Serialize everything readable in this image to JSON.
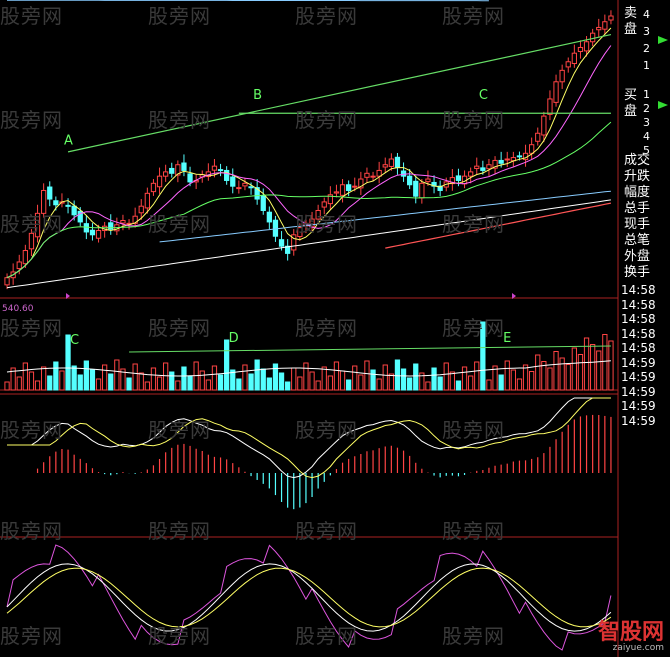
{
  "watermark": "股旁网",
  "brand": {
    "name": "智股网",
    "domain": "zaiyue.com"
  },
  "quote_panel": {
    "sell_label": "卖盘",
    "buy_label": "买盘",
    "sell_levels": [
      "4",
      "3",
      "2",
      "1"
    ],
    "buy_levels": [
      "1",
      "2",
      "3",
      "4",
      "5"
    ],
    "fields": [
      "成交",
      "升跌",
      "幅度",
      "总手",
      "现手",
      "总笔",
      "外盘",
      "换手"
    ],
    "times": [
      "14:58",
      "14:58",
      "14:58",
      "14:58",
      "14:58",
      "14:59",
      "14:59",
      "14:59",
      "14:59",
      "14:59"
    ]
  },
  "volume_scale_label": "540.60",
  "colors": {
    "up": "#ff4444",
    "down": "#55ffff",
    "ma5": "#ffffff",
    "ma10": "#ffff66",
    "ma20": "#ff66ff",
    "ma60": "#66ff66",
    "ma120": "#88ccff",
    "ma250": "#ff5555",
    "trend": "#66dd66",
    "panel_border": "#aa2222"
  },
  "chart_data": [
    {
      "type": "candlestick",
      "panel": "price",
      "annotations": [
        "A",
        "B",
        "C"
      ],
      "x": [
        "1",
        "2",
        "3",
        "4",
        "5",
        "6",
        "7",
        "8",
        "9",
        "10",
        "11",
        "12",
        "13",
        "14",
        "15",
        "16",
        "17",
        "18",
        "19",
        "20",
        "21",
        "22",
        "23",
        "24",
        "25",
        "26",
        "27",
        "28",
        "29",
        "30",
        "31",
        "32",
        "33",
        "34",
        "35",
        "36",
        "37",
        "38",
        "39",
        "40",
        "41",
        "42",
        "43",
        "44",
        "45",
        "46",
        "47",
        "48",
        "49",
        "50",
        "51",
        "52",
        "53",
        "54",
        "55",
        "56",
        "57",
        "58",
        "59",
        "60",
        "61",
        "62",
        "63",
        "64",
        "65",
        "66",
        "67",
        "68",
        "69",
        "70",
        "71",
        "72",
        "73",
        "74",
        "75",
        "76",
        "77",
        "78",
        "79",
        "80",
        "81",
        "82",
        "83",
        "84",
        "85",
        "86",
        "87",
        "88",
        "89",
        "90",
        "91",
        "92",
        "93",
        "94",
        "95",
        "96",
        "97",
        "98",
        "99",
        "100"
      ],
      "close": [
        0.05,
        0.09,
        0.16,
        0.24,
        0.36,
        0.5,
        0.66,
        0.6,
        0.56,
        0.58,
        0.55,
        0.49,
        0.44,
        0.37,
        0.35,
        0.38,
        0.41,
        0.39,
        0.42,
        0.45,
        0.43,
        0.48,
        0.55,
        0.64,
        0.71,
        0.76,
        0.79,
        0.78,
        0.84,
        0.8,
        0.72,
        0.73,
        0.77,
        0.79,
        0.83,
        0.8,
        0.73,
        0.69,
        0.68,
        0.71,
        0.68,
        0.6,
        0.52,
        0.44,
        0.34,
        0.27,
        0.22,
        0.35,
        0.4,
        0.43,
        0.46,
        0.52,
        0.58,
        0.63,
        0.65,
        0.7,
        0.66,
        0.69,
        0.74,
        0.78,
        0.76,
        0.8,
        0.84,
        0.88,
        0.82,
        0.76,
        0.7,
        0.62,
        0.71,
        0.74,
        0.69,
        0.66,
        0.72,
        0.75,
        0.73,
        0.76,
        0.79,
        0.83,
        0.8,
        0.84,
        0.87,
        0.85,
        0.88,
        0.89,
        0.9,
        0.92,
        0.98,
        1.06,
        1.18,
        1.3,
        1.42,
        1.5,
        1.56,
        1.62,
        1.66,
        1.7,
        1.76,
        1.8,
        1.84,
        1.88
      ]
    },
    {
      "type": "bar",
      "panel": "volume",
      "annotations": [
        "C",
        "D",
        "E"
      ]
    },
    {
      "type": "bar",
      "panel": "macd"
    },
    {
      "type": "line",
      "panel": "kdj"
    }
  ]
}
